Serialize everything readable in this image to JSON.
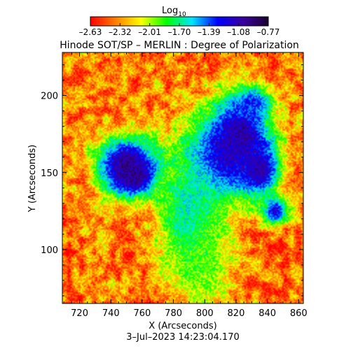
{
  "chart_data": {
    "type": "heatmap",
    "title": "Hinode SOT/SP – MERLIN : Degree of Polarization",
    "xlabel": "X (Arcseconds)",
    "ylabel": "Y (Arcseconds)",
    "date_label": "3–Jul–2023 14:23:04.170",
    "xlim": [
      709,
      863
    ],
    "ylim": [
      65,
      228
    ],
    "x_ticks": [
      720,
      740,
      760,
      780,
      800,
      820,
      840,
      860
    ],
    "y_ticks": [
      100,
      150,
      200
    ],
    "colorbar": {
      "label_base": "Log",
      "label_sub": "10",
      "range": [
        -2.63,
        -0.77
      ],
      "tick_labels": [
        "–2.63",
        "–2.32",
        "–2.01",
        "–1.70",
        "–1.39",
        "–1.08",
        "–0.77"
      ],
      "colors": [
        "#ff0000",
        "#ff7f00",
        "#ffff00",
        "#00ff00",
        "#00e5ff",
        "#0000ff",
        "#3a00a0",
        "#1a0030"
      ]
    },
    "features": [
      {
        "name": "blob",
        "x": 755,
        "y": 148,
        "value": -0.8,
        "sx": 9,
        "sy": 8
      },
      {
        "name": "blob",
        "x": 750,
        "y": 155,
        "value": -1.0,
        "sx": 14,
        "sy": 14
      },
      {
        "name": "blob",
        "x": 822,
        "y": 175,
        "value": -0.9,
        "sx": 12,
        "sy": 14
      },
      {
        "name": "blob",
        "x": 835,
        "y": 152,
        "value": -1.0,
        "sx": 9,
        "sy": 12
      },
      {
        "name": "blob",
        "x": 812,
        "y": 160,
        "value": -1.1,
        "sx": 18,
        "sy": 20
      },
      {
        "name": "blob",
        "x": 845,
        "y": 125,
        "value": -1.2,
        "sx": 6,
        "sy": 6
      },
      {
        "name": "blob",
        "x": 830,
        "y": 195,
        "value": -1.3,
        "sx": 10,
        "sy": 8
      },
      {
        "name": "blob",
        "x": 790,
        "y": 120,
        "value": -1.6,
        "sx": 14,
        "sy": 30
      },
      {
        "name": "blob",
        "x": 800,
        "y": 90,
        "value": -1.9,
        "sx": 12,
        "sy": 18
      }
    ]
  }
}
